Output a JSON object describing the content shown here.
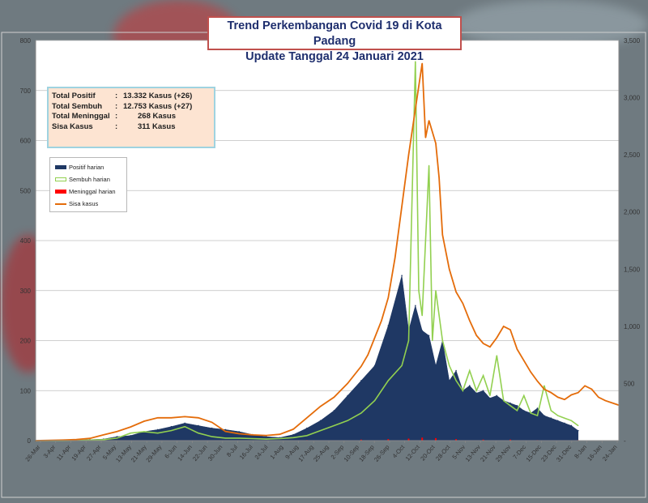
{
  "title_line1": "Trend Perkembangan Covid 19 di Kota Padang",
  "title_line2": "Update Tanggal 24 Januari 2021",
  "summary": [
    {
      "label": "Total Positif",
      "sep": ":",
      "value": "13.332 Kasus (+26)"
    },
    {
      "label": "Total Sembuh",
      "sep": ":",
      "value": "12.753 Kasus (+27)"
    },
    {
      "label": "Total Meninggal",
      "sep": ":",
      "value": "268 Kasus"
    },
    {
      "label": "Sisa Kasus",
      "sep": ":",
      "value": "311 Kasus"
    }
  ],
  "colors": {
    "positif": "#1f3864",
    "sembuh": "#92d050",
    "meninggal": "#ff0000",
    "sisa": "#e46c0a"
  },
  "chart_data": {
    "type": "area",
    "title": "Trend Perkembangan Covid 19 di Kota Padang",
    "subtitle": "Update Tanggal 24 Januari 2021",
    "x_ticks": [
      "26-Mar",
      "3-Apr",
      "11-Apr",
      "19-Apr",
      "27-Apr",
      "5-May",
      "13-May",
      "21-May",
      "29-May",
      "6-Jun",
      "14-Jun",
      "22-Jun",
      "30-Jun",
      "8-Jul",
      "16-Jul",
      "24-Jul",
      "1-Aug",
      "9-Aug",
      "17-Aug",
      "25-Aug",
      "2-Sep",
      "10-Sep",
      "18-Sep",
      "26-Sep",
      "4-Oct",
      "12-Oct",
      "20-Oct",
      "28-Oct",
      "5-Nov",
      "13-Nov",
      "21-Nov",
      "29-Nov",
      "7-Dec",
      "15-Dec",
      "23-Dec",
      "31-Dec",
      "8-Jan",
      "16-Jan",
      "24-Jan"
    ],
    "y_left_ticks": [
      0,
      100,
      200,
      300,
      400,
      500,
      600,
      700,
      800
    ],
    "y_left_lim": [
      0,
      800
    ],
    "y_right_ticks": [
      "-",
      "500",
      "1,000",
      "1,500",
      "2,000",
      "2,500",
      "3,000",
      "3,500"
    ],
    "y_right_lim": [
      0,
      3500
    ],
    "grid": true,
    "legend_position": "upper-left",
    "series": [
      {
        "name": "Positif harian",
        "axis": "left",
        "style": "area",
        "points": [
          [
            0,
            0
          ],
          [
            2,
            0
          ],
          [
            4,
            1
          ],
          [
            6,
            1
          ],
          [
            8,
            2
          ],
          [
            10,
            3
          ],
          [
            12,
            8
          ],
          [
            14,
            10
          ],
          [
            16,
            18
          ],
          [
            18,
            22
          ],
          [
            20,
            28
          ],
          [
            22,
            35
          ],
          [
            24,
            30
          ],
          [
            26,
            25
          ],
          [
            28,
            22
          ],
          [
            30,
            18
          ],
          [
            32,
            12
          ],
          [
            34,
            8
          ],
          [
            36,
            6
          ],
          [
            38,
            12
          ],
          [
            40,
            25
          ],
          [
            42,
            40
          ],
          [
            44,
            60
          ],
          [
            46,
            90
          ],
          [
            48,
            120
          ],
          [
            50,
            150
          ],
          [
            52,
            230
          ],
          [
            54,
            330
          ],
          [
            55,
            220
          ],
          [
            56,
            270
          ],
          [
            57,
            220
          ],
          [
            58,
            210
          ],
          [
            59,
            150
          ],
          [
            60,
            200
          ],
          [
            61,
            120
          ],
          [
            62,
            140
          ],
          [
            63,
            100
          ],
          [
            64,
            110
          ],
          [
            65,
            95
          ],
          [
            66,
            100
          ],
          [
            67,
            85
          ],
          [
            68,
            90
          ],
          [
            69,
            80
          ],
          [
            70,
            75
          ],
          [
            71,
            70
          ],
          [
            72,
            60
          ],
          [
            73,
            55
          ],
          [
            74,
            65
          ],
          [
            75,
            50
          ],
          [
            76,
            45
          ],
          [
            77,
            40
          ],
          [
            78,
            35
          ],
          [
            79,
            30
          ],
          [
            80,
            20
          ]
        ]
      },
      {
        "name": "Sembuh harian",
        "axis": "left",
        "style": "line",
        "points": [
          [
            0,
            0
          ],
          [
            4,
            0
          ],
          [
            8,
            1
          ],
          [
            10,
            2
          ],
          [
            12,
            5
          ],
          [
            14,
            15
          ],
          [
            16,
            18
          ],
          [
            18,
            15
          ],
          [
            20,
            20
          ],
          [
            22,
            28
          ],
          [
            24,
            15
          ],
          [
            26,
            8
          ],
          [
            28,
            5
          ],
          [
            30,
            5
          ],
          [
            32,
            4
          ],
          [
            34,
            3
          ],
          [
            36,
            4
          ],
          [
            38,
            6
          ],
          [
            40,
            10
          ],
          [
            42,
            20
          ],
          [
            44,
            30
          ],
          [
            46,
            40
          ],
          [
            48,
            55
          ],
          [
            50,
            80
          ],
          [
            52,
            120
          ],
          [
            54,
            150
          ],
          [
            55,
            200
          ],
          [
            56,
            758
          ],
          [
            56.5,
            300
          ],
          [
            57,
            250
          ],
          [
            58,
            550
          ],
          [
            58.5,
            200
          ],
          [
            59,
            300
          ],
          [
            60,
            200
          ],
          [
            61,
            150
          ],
          [
            62,
            120
          ],
          [
            63,
            100
          ],
          [
            64,
            140
          ],
          [
            65,
            100
          ],
          [
            66,
            130
          ],
          [
            67,
            90
          ],
          [
            68,
            170
          ],
          [
            69,
            80
          ],
          [
            70,
            70
          ],
          [
            71,
            60
          ],
          [
            72,
            90
          ],
          [
            73,
            55
          ],
          [
            74,
            50
          ],
          [
            75,
            110
          ],
          [
            76,
            60
          ],
          [
            77,
            50
          ],
          [
            78,
            45
          ],
          [
            79,
            40
          ],
          [
            80,
            30
          ]
        ]
      },
      {
        "name": "Meninggal harian",
        "axis": "left",
        "style": "bar",
        "points": [
          [
            0,
            0
          ],
          [
            10,
            0
          ],
          [
            20,
            0
          ],
          [
            30,
            0
          ],
          [
            40,
            1
          ],
          [
            48,
            2
          ],
          [
            52,
            3
          ],
          [
            55,
            4
          ],
          [
            57,
            6
          ],
          [
            59,
            5
          ],
          [
            62,
            3
          ],
          [
            66,
            2
          ],
          [
            70,
            2
          ],
          [
            74,
            1
          ],
          [
            80,
            1
          ]
        ]
      },
      {
        "name": "Sisa kasus",
        "axis": "right",
        "style": "line",
        "points": [
          [
            0,
            0
          ],
          [
            2,
            2
          ],
          [
            4,
            5
          ],
          [
            6,
            10
          ],
          [
            8,
            20
          ],
          [
            10,
            50
          ],
          [
            12,
            80
          ],
          [
            14,
            120
          ],
          [
            16,
            170
          ],
          [
            18,
            200
          ],
          [
            20,
            200
          ],
          [
            22,
            210
          ],
          [
            24,
            200
          ],
          [
            26,
            160
          ],
          [
            28,
            80
          ],
          [
            30,
            60
          ],
          [
            32,
            50
          ],
          [
            34,
            45
          ],
          [
            36,
            55
          ],
          [
            38,
            100
          ],
          [
            40,
            200
          ],
          [
            42,
            300
          ],
          [
            44,
            380
          ],
          [
            46,
            500
          ],
          [
            48,
            650
          ],
          [
            49,
            750
          ],
          [
            50,
            900
          ],
          [
            51,
            1050
          ],
          [
            52,
            1250
          ],
          [
            53,
            1600
          ],
          [
            54,
            2050
          ],
          [
            55,
            2500
          ],
          [
            56,
            2900
          ],
          [
            57,
            3300
          ],
          [
            57.5,
            2650
          ],
          [
            58,
            2800
          ],
          [
            59,
            2600
          ],
          [
            59.5,
            2300
          ],
          [
            60,
            1800
          ],
          [
            61,
            1500
          ],
          [
            62,
            1300
          ],
          [
            63,
            1200
          ],
          [
            64,
            1050
          ],
          [
            65,
            920
          ],
          [
            66,
            850
          ],
          [
            67,
            820
          ],
          [
            68,
            900
          ],
          [
            69,
            1000
          ],
          [
            70,
            970
          ],
          [
            71,
            800
          ],
          [
            72,
            700
          ],
          [
            73,
            600
          ],
          [
            74,
            520
          ],
          [
            75,
            450
          ],
          [
            76,
            420
          ],
          [
            77,
            380
          ],
          [
            78,
            360
          ],
          [
            79,
            400
          ],
          [
            80,
            420
          ],
          [
            81,
            480
          ],
          [
            82,
            450
          ],
          [
            83,
            380
          ],
          [
            84,
            350
          ],
          [
            85,
            330
          ],
          [
            86,
            310
          ]
        ]
      }
    ],
    "x_span": [
      0,
      86
    ]
  }
}
